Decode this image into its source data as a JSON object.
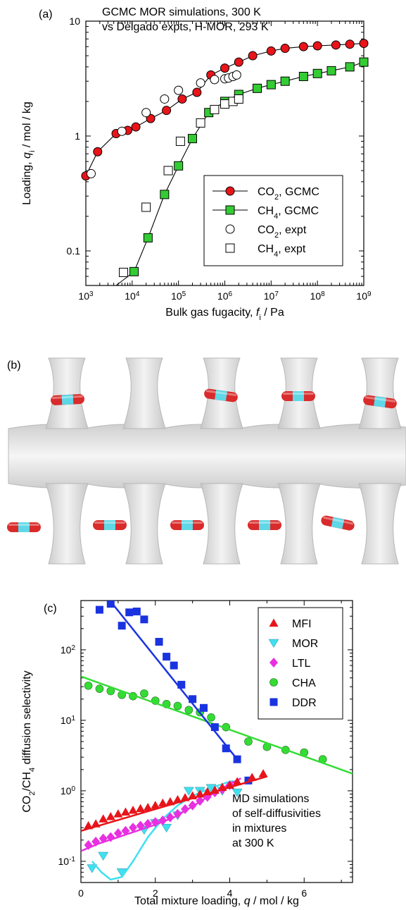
{
  "panel_a": {
    "label": "(a)",
    "title_line1": "GCMC MOR simulations, 300 K",
    "title_line2": "vs Delgado expts, H-MOR, 293 K",
    "ylabel": {
      "pre": "Loading, ",
      "var": "q",
      "sub": "i",
      "post": " / mol / kg"
    },
    "xlabel": {
      "pre": "Bulk gas fugacity, ",
      "var": "f",
      "sub": "i",
      "post": " / Pa"
    },
    "yticks": [
      "0.1",
      "1",
      "10"
    ],
    "xticks_base": "10",
    "xticks_exp": [
      "3",
      "4",
      "5",
      "6",
      "7",
      "8",
      "9"
    ],
    "legend": [
      {
        "main": "CO",
        "sub": "2",
        "rest": ", GCMC"
      },
      {
        "main": "CH",
        "sub": "4",
        "rest": ", GCMC"
      },
      {
        "main": "CO",
        "sub": "2",
        "rest": ", expt"
      },
      {
        "main": "CH",
        "sub": "4",
        "rest": ", expt"
      }
    ]
  },
  "panel_b": {
    "label": "(b)"
  },
  "panel_c": {
    "label": "(c)",
    "ylabel": {
      "p1": "CO",
      "s1": "2",
      "p2": "/CH",
      "s2": "4",
      "p3": " diffusion selectivity"
    },
    "xlabel": {
      "pre": "Total mixture loading, ",
      "var": "q",
      "post": " / mol / kg"
    },
    "xticks": [
      "0",
      "2",
      "4",
      "6"
    ],
    "yticks_base": "10",
    "yticks_exp": [
      "-1",
      "0",
      "1",
      "2"
    ],
    "legend": [
      "MFI",
      "MOR",
      "LTL",
      "CHA",
      "DDR"
    ],
    "annotation": [
      "MD simulations",
      "of self-diffusivities",
      "in mixtures",
      "at 300 K"
    ]
  },
  "colors": {
    "co2": "#e8141a",
    "ch4": "#33cc33",
    "MFI": "#e8141a",
    "MOR": "#40e0f0",
    "LTL": "#e830e0",
    "CHA": "#33dd33",
    "DDR": "#1a33e0"
  },
  "chart_data": [
    {
      "type": "scatter",
      "x_scale": "log",
      "y_scale": "log",
      "xlim": [
        1000,
        1000000000
      ],
      "ylim": [
        0.05,
        10
      ],
      "series": [
        {
          "name": "CO2, GCMC",
          "marker": "filled-circle",
          "line": true,
          "x": [
            1000,
            1800,
            4500,
            8000,
            12000,
            25000,
            55000,
            120000,
            250000,
            500000,
            1000000,
            2000000,
            4000000,
            10000000,
            20000000,
            50000000,
            100000000,
            250000000,
            500000000,
            1000000000
          ],
          "y": [
            0.45,
            0.73,
            1.05,
            1.12,
            1.2,
            1.42,
            1.67,
            2.1,
            2.4,
            3.4,
            3.9,
            4.4,
            5.0,
            5.5,
            5.8,
            6.0,
            6.1,
            6.2,
            6.3,
            6.4
          ]
        },
        {
          "name": "CH4, GCMC",
          "marker": "filled-square",
          "line": true,
          "x": [
            11000,
            22000,
            50000,
            100000,
            200000,
            450000,
            1000000,
            2000000,
            5000000,
            10000000,
            20000000,
            50000000,
            100000000,
            200000000,
            500000000,
            1000000000
          ],
          "y": [
            0.066,
            0.13,
            0.31,
            0.55,
            0.95,
            1.6,
            2.0,
            2.3,
            2.6,
            2.8,
            3.0,
            3.3,
            3.5,
            3.7,
            4.0,
            4.4
          ],
          "curve_x": [
            4500,
            11000,
            22000,
            50000,
            100000,
            200000,
            450000,
            1000000,
            2000000,
            5000000,
            10000000,
            20000000,
            50000000,
            100000000,
            200000000,
            500000000,
            1000000000
          ],
          "curve_y": [
            0.05,
            0.066,
            0.13,
            0.31,
            0.55,
            0.95,
            1.6,
            2.0,
            2.3,
            2.6,
            2.8,
            3.0,
            3.3,
            3.5,
            3.7,
            4.0,
            4.4
          ]
        },
        {
          "name": "CO2, expt",
          "marker": "open-circle",
          "line": false,
          "x": [
            1300,
            6000,
            20000,
            50000,
            100000,
            300000,
            600000,
            1000000,
            1200000,
            1500000,
            1800000
          ],
          "y": [
            0.47,
            1.1,
            1.6,
            2.1,
            2.5,
            2.9,
            3.1,
            3.15,
            3.2,
            3.3,
            3.4
          ]
        },
        {
          "name": "CH4, expt",
          "marker": "open-square",
          "line": false,
          "x": [
            6500,
            20000,
            60000,
            110000,
            300000,
            600000,
            1000000,
            1500000,
            2000000
          ],
          "y": [
            0.065,
            0.24,
            0.5,
            0.9,
            1.3,
            1.7,
            1.9,
            2.0,
            2.1
          ]
        }
      ]
    },
    {
      "type": "scatter",
      "x_scale": "linear",
      "y_scale": "log",
      "xlim": [
        0,
        7.3
      ],
      "ylim": [
        0.05,
        500
      ],
      "series": [
        {
          "name": "MFI",
          "marker": "triangle-up",
          "x": [
            0.2,
            0.4,
            0.6,
            0.8,
            1.0,
            1.2,
            1.4,
            1.6,
            1.8,
            2.0,
            2.2,
            2.4,
            2.6,
            2.8,
            3.0,
            3.2,
            3.4,
            3.6,
            3.8,
            4.0,
            4.2,
            4.6,
            4.9
          ],
          "y": [
            0.32,
            0.34,
            0.4,
            0.43,
            0.47,
            0.5,
            0.53,
            0.56,
            0.58,
            0.62,
            0.67,
            0.7,
            0.75,
            0.8,
            0.85,
            0.9,
            0.97,
            1.02,
            1.12,
            1.2,
            1.35,
            1.55,
            1.75
          ],
          "fit_x": [
            0,
            5.0
          ],
          "fit_y": [
            0.27,
            1.6
          ]
        },
        {
          "name": "MOR",
          "marker": "triangle-down",
          "x": [
            0.3,
            0.6,
            1.1,
            1.7,
            2.0,
            2.3,
            2.6,
            2.9,
            3.2,
            3.5,
            3.8,
            4.2
          ],
          "y": [
            0.08,
            0.12,
            0.07,
            0.28,
            0.35,
            0.3,
            0.45,
            1.0,
            1.0,
            1.1,
            1.0,
            0.95
          ],
          "curve_x": [
            0.3,
            0.55,
            0.8,
            1.1,
            1.4,
            1.8,
            2.2,
            2.6,
            3.0,
            3.5,
            3.9,
            4.1
          ],
          "curve_y": [
            0.1,
            0.07,
            0.055,
            0.06,
            0.1,
            0.22,
            0.4,
            0.62,
            0.85,
            1.1,
            1.3,
            1.38
          ]
        },
        {
          "name": "LTL",
          "marker": "diamond",
          "x": [
            0.2,
            0.4,
            0.6,
            0.8,
            1.0,
            1.2,
            1.4,
            1.6,
            1.8,
            2.0,
            2.2,
            2.4,
            2.6,
            2.8,
            3.0,
            3.2,
            3.4,
            3.6,
            3.8,
            4.0
          ],
          "y": [
            0.17,
            0.19,
            0.21,
            0.22,
            0.25,
            0.27,
            0.3,
            0.32,
            0.34,
            0.36,
            0.38,
            0.42,
            0.47,
            0.55,
            0.62,
            0.72,
            0.82,
            0.95,
            1.05,
            1.2
          ],
          "fit_x": [
            0,
            0.5,
            1.0,
            1.5,
            2.0,
            2.5,
            3.0,
            3.5,
            4.0,
            4.3
          ],
          "fit_y": [
            0.14,
            0.18,
            0.22,
            0.27,
            0.33,
            0.42,
            0.6,
            0.88,
            1.25,
            1.5
          ]
        },
        {
          "name": "CHA",
          "marker": "circle",
          "x": [
            0.2,
            0.5,
            0.8,
            1.1,
            1.4,
            1.7,
            2.0,
            2.3,
            2.6,
            2.9,
            3.2,
            3.5,
            3.9,
            4.5,
            5.0,
            5.5,
            6.0,
            6.5
          ],
          "y": [
            31,
            28,
            26,
            23,
            22,
            24,
            19,
            17,
            16,
            14,
            13,
            11,
            8,
            5,
            4.2,
            3.8,
            3.5,
            2.8
          ],
          "fit_x": [
            0,
            7.3
          ],
          "fit_y": [
            42,
            1.75
          ]
        },
        {
          "name": "DDR",
          "marker": "square",
          "x": [
            0.5,
            0.8,
            1.1,
            1.3,
            1.5,
            1.7,
            2.1,
            2.3,
            2.5,
            2.7,
            3.0,
            3.3,
            3.6,
            3.9,
            4.2,
            4.5
          ],
          "y": [
            370,
            450,
            220,
            340,
            350,
            270,
            130,
            80,
            60,
            32,
            20,
            15,
            8,
            4,
            2.8,
            1.4
          ],
          "fit_x": [
            0.85,
            4.2
          ],
          "fit_y": [
            450,
            2.8
          ]
        }
      ]
    }
  ]
}
